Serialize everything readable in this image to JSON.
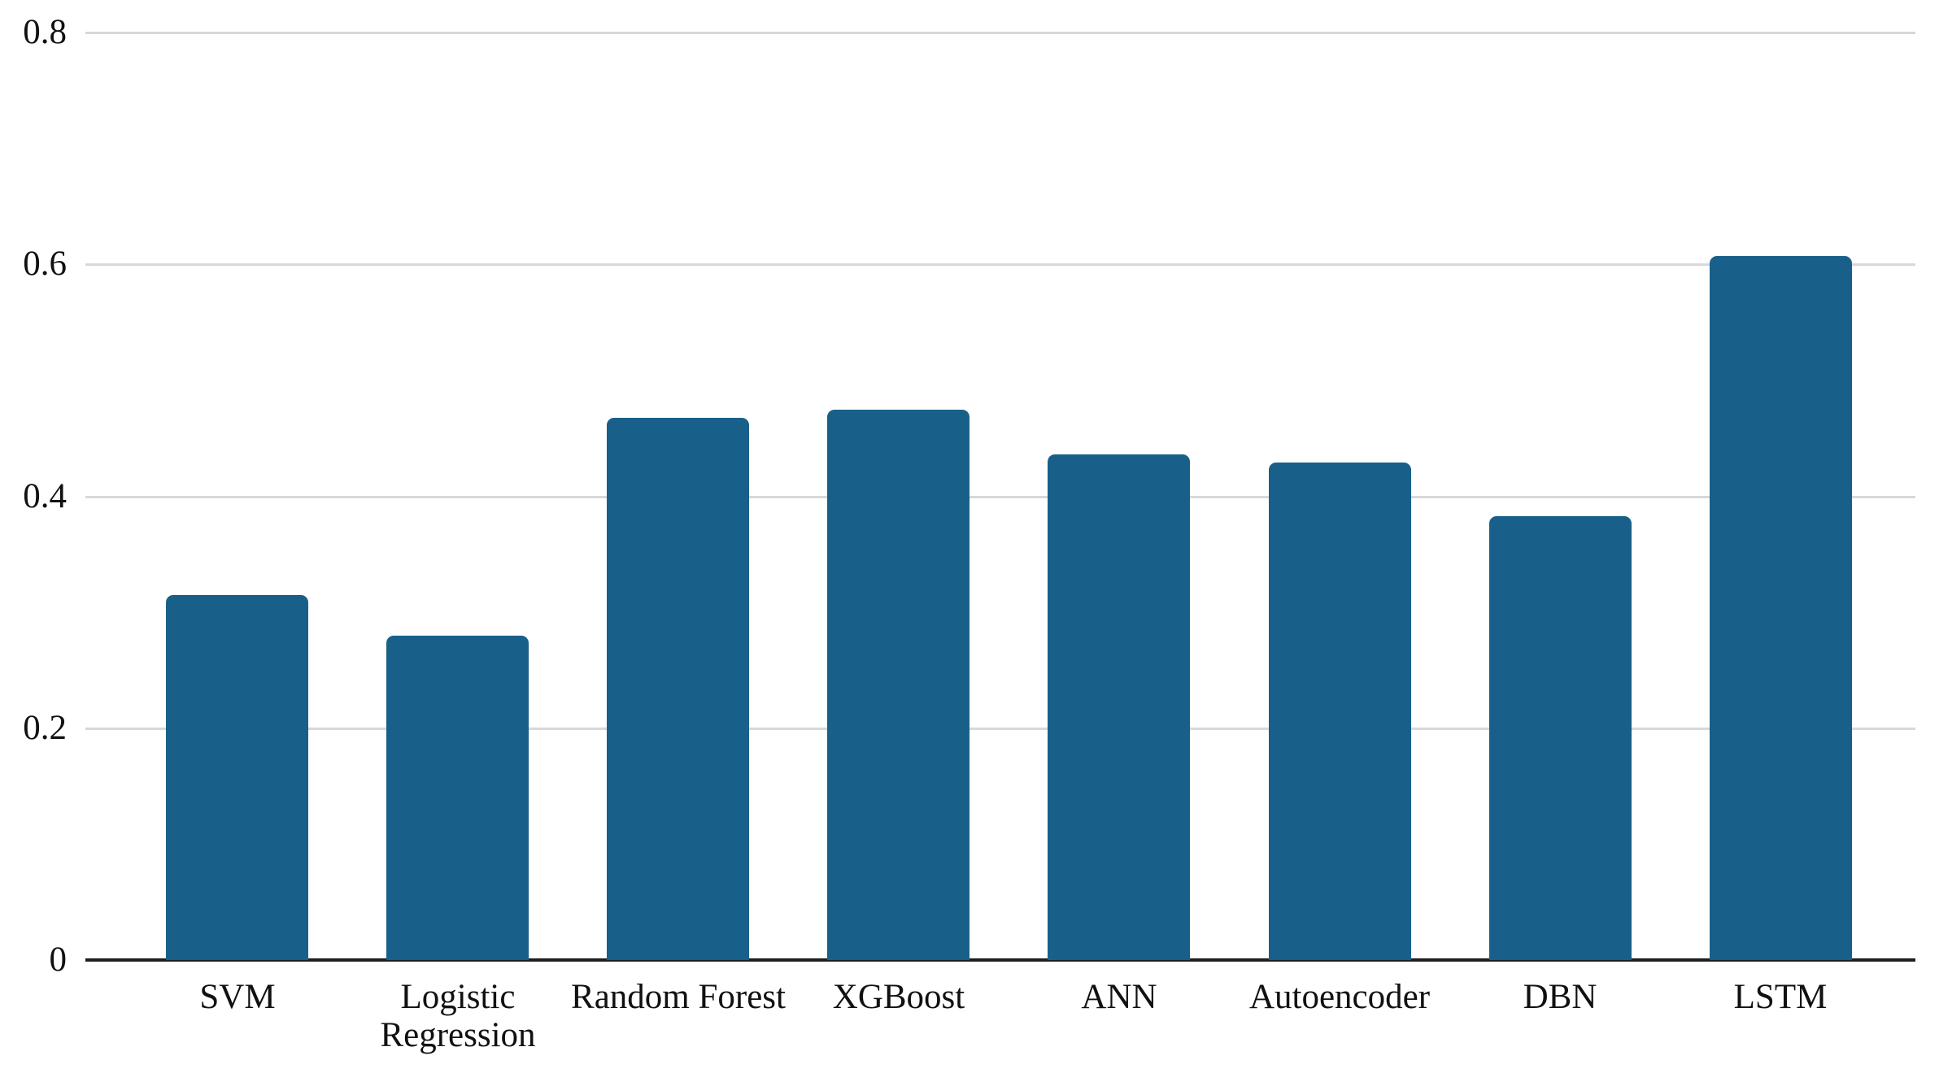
{
  "chart_data": {
    "type": "bar",
    "title": "",
    "xlabel": "",
    "ylabel": "",
    "categories": [
      "SVM",
      "Logistic Regression",
      "Random Forest",
      "XGBoost",
      "ANN",
      "Autoencoder",
      "DBN",
      "LSTM"
    ],
    "values": [
      0.315,
      0.28,
      0.468,
      0.475,
      0.436,
      0.429,
      0.383,
      0.607
    ],
    "ylim": [
      0,
      0.8
    ],
    "yticks": [
      0,
      0.2,
      0.4,
      0.6,
      0.8
    ],
    "ytick_labels": [
      "0",
      "0.2",
      "0.4",
      "0.6",
      "0.8"
    ],
    "grid": true,
    "legend_visible": false,
    "bar_color": "#186089",
    "gridline_color": "#d8d8d8",
    "axis_line_color": "#1f1f1f",
    "text_color": "#111111",
    "background_color": "#ffffff"
  }
}
